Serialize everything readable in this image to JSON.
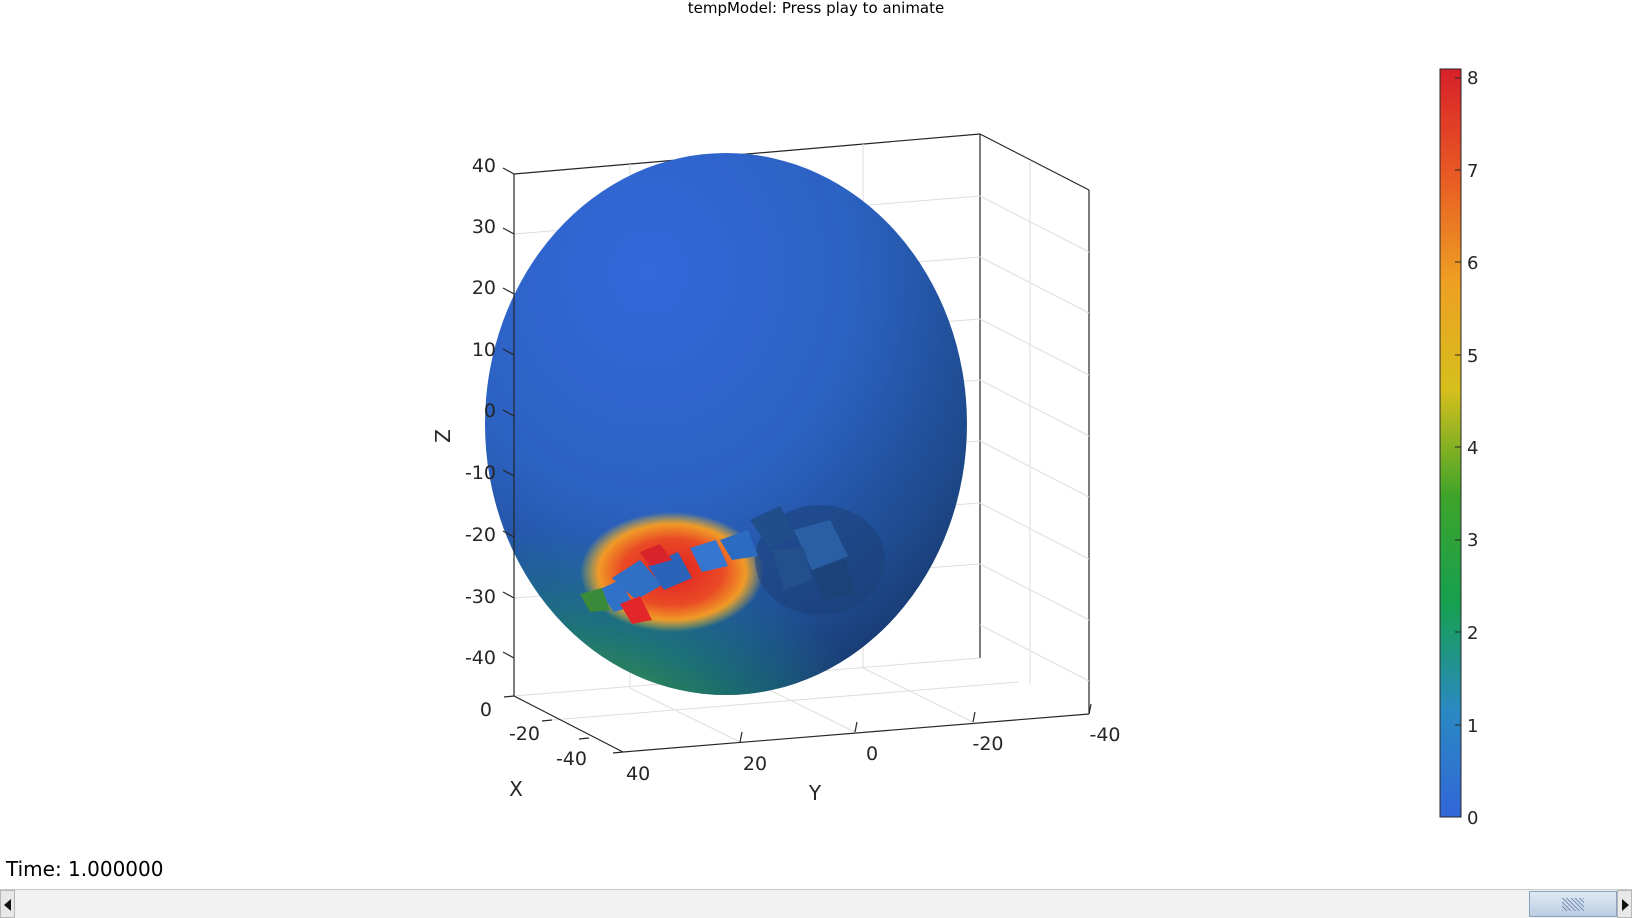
{
  "window": {
    "title": "tempModel: Press play to animate"
  },
  "axes": {
    "xlabel": "X",
    "ylabel": "Y",
    "zlabel": "Z",
    "z_ticks": [
      "40",
      "30",
      "20",
      "10",
      "0",
      "-10",
      "-20",
      "-30",
      "-40"
    ],
    "x_ticks": [
      "0",
      "-20",
      "-40",
      "40"
    ],
    "y_ticks": [
      "20",
      "0",
      "-20",
      "-40"
    ]
  },
  "colorbar": {
    "ticks": [
      "8",
      "7",
      "6",
      "5",
      "4",
      "3",
      "2",
      "1",
      "0"
    ],
    "range": [
      0,
      8.1
    ],
    "colors": [
      "#3266d8",
      "#2a89c2",
      "#16a04f",
      "#3ea42a",
      "#d6bf1c",
      "#eea023",
      "#e85a24",
      "#d8202a"
    ]
  },
  "status": {
    "time": "Time: 1.000000"
  },
  "scrollbar": {
    "position": 1.0
  }
}
